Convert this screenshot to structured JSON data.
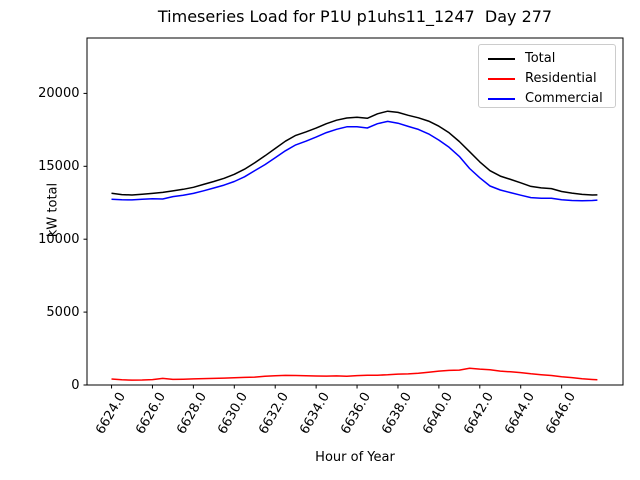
{
  "chart_data": {
    "type": "line",
    "title": "Timeseries Load for P1U p1uhs11_1247  Day 277",
    "xlabel": "Hour of Year",
    "ylabel": "kW total",
    "xlim": [
      6622.8,
      6649.0
    ],
    "ylim": [
      0,
      23800
    ],
    "grid": false,
    "legend_position": "upper right",
    "xticks": {
      "values": [
        6624,
        6626,
        6628,
        6630,
        6632,
        6634,
        6636,
        6638,
        6640,
        6642,
        6644,
        6646
      ],
      "labels": [
        "6624.0",
        "6626.0",
        "6628.0",
        "6630.0",
        "6632.0",
        "6634.0",
        "6636.0",
        "6638.0",
        "6640.0",
        "6642.0",
        "6644.0",
        "6646.0"
      ]
    },
    "yticks": {
      "values": [
        0,
        5000,
        10000,
        15000,
        20000
      ],
      "labels": [
        "0",
        "5000",
        "10000",
        "15000",
        "20000"
      ]
    },
    "x": [
      6624.0,
      6624.5,
      6625.0,
      6625.5,
      6626.0,
      6626.5,
      6627.0,
      6627.5,
      6628.0,
      6628.5,
      6629.0,
      6629.5,
      6630.0,
      6630.5,
      6631.0,
      6631.5,
      6632.0,
      6632.5,
      6633.0,
      6633.5,
      6634.0,
      6634.5,
      6635.0,
      6635.5,
      6636.0,
      6636.5,
      6637.0,
      6637.5,
      6638.0,
      6638.5,
      6639.0,
      6639.5,
      6640.0,
      6640.5,
      6641.0,
      6641.5,
      6642.0,
      6642.5,
      6643.0,
      6643.5,
      6644.0,
      6644.5,
      6645.0,
      6645.5,
      6646.0,
      6646.5,
      6647.0,
      6647.5,
      6647.75
    ],
    "series": [
      {
        "name": "Total",
        "color": "#000000",
        "values": [
          13150,
          13060,
          13030,
          13080,
          13140,
          13210,
          13310,
          13420,
          13560,
          13760,
          13960,
          14180,
          14450,
          14800,
          15250,
          15720,
          16220,
          16720,
          17120,
          17360,
          17620,
          17920,
          18160,
          18310,
          18360,
          18290,
          18600,
          18780,
          18700,
          18500,
          18330,
          18100,
          17750,
          17300,
          16700,
          16000,
          15300,
          14700,
          14330,
          14100,
          13870,
          13620,
          13520,
          13470,
          13270,
          13160,
          13070,
          13030,
          13040
        ]
      },
      {
        "name": "Residential",
        "color": "#ff0000",
        "values": [
          410,
          355,
          335,
          345,
          370,
          455,
          385,
          400,
          420,
          440,
          450,
          470,
          495,
          520,
          545,
          600,
          630,
          660,
          650,
          635,
          620,
          610,
          625,
          600,
          645,
          665,
          675,
          700,
          745,
          760,
          800,
          875,
          950,
          1000,
          1020,
          1150,
          1090,
          1050,
          955,
          905,
          850,
          765,
          705,
          655,
          565,
          505,
          435,
          375,
          360
        ]
      },
      {
        "name": "Commercial",
        "color": "#0000ff",
        "values": [
          12740,
          12705,
          12695,
          12735,
          12770,
          12755,
          12925,
          13020,
          13140,
          13320,
          13510,
          13710,
          13955,
          14280,
          14705,
          15120,
          15590,
          16060,
          16470,
          16725,
          17000,
          17310,
          17535,
          17710,
          17715,
          17625,
          17925,
          18080,
          17955,
          17740,
          17530,
          17225,
          16800,
          16300,
          15680,
          14850,
          14210,
          13650,
          13375,
          13195,
          13020,
          12855,
          12815,
          12815,
          12705,
          12655,
          12635,
          12655,
          12680
        ]
      }
    ]
  }
}
